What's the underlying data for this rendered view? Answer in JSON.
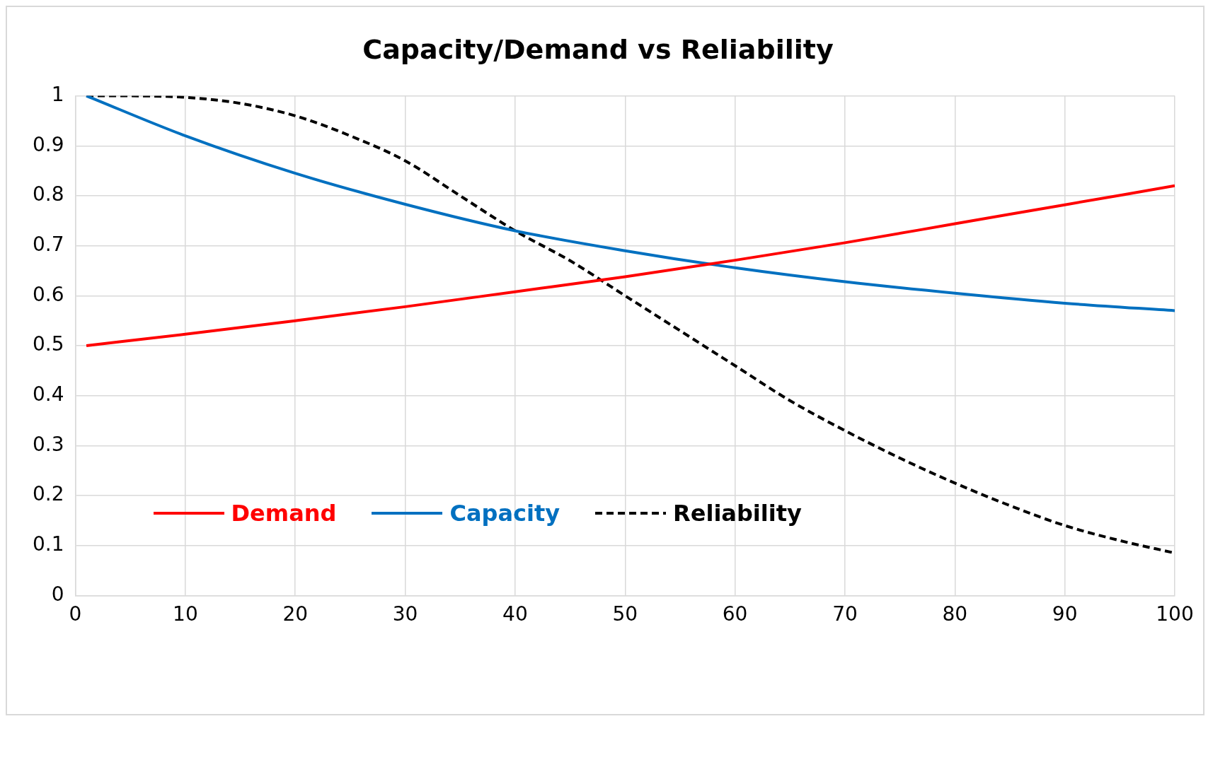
{
  "chart_data": {
    "type": "line",
    "title": "Capacity/Demand vs Reliability",
    "x": [
      1,
      10,
      20,
      30,
      40,
      50,
      60,
      70,
      80,
      90,
      100
    ],
    "series": [
      {
        "name": "Demand",
        "color": "#ff0000",
        "values": [
          0.5,
          0.523,
          0.55,
          0.578,
          0.608,
          0.638,
          0.671,
          0.706,
          0.744,
          0.782,
          0.82
        ]
      },
      {
        "name": "Capacity",
        "color": "#0070c0",
        "values": [
          1,
          0.92,
          0.845,
          0.783,
          0.73,
          0.69,
          0.656,
          0.628,
          0.605,
          0.585,
          0.57
        ]
      },
      {
        "name": "Reliability",
        "color": "#000000",
        "line_style": "dashed",
        "x": [
          1,
          5,
          10,
          15,
          20,
          25,
          30,
          35,
          40,
          45,
          50,
          55,
          60,
          65,
          70,
          75,
          80,
          85,
          90,
          95,
          100
        ],
        "values": [
          1,
          1,
          0.997,
          0.985,
          0.96,
          0.92,
          0.87,
          0.8,
          0.73,
          0.67,
          0.6,
          0.53,
          0.46,
          0.39,
          0.33,
          0.275,
          0.225,
          0.18,
          0.14,
          0.11,
          0.085
        ]
      }
    ],
    "xlim": [
      0,
      100
    ],
    "xticks": [
      0,
      10,
      20,
      30,
      40,
      50,
      60,
      70,
      80,
      90,
      100
    ],
    "ylim": [
      0,
      1
    ],
    "yticks": [
      0,
      0.1,
      0.2,
      0.3,
      0.4,
      0.5,
      0.6,
      0.7,
      0.8,
      0.9,
      1
    ],
    "grid": true,
    "legend": "bottom left",
    "marker": "none",
    "line_style": "solid"
  }
}
